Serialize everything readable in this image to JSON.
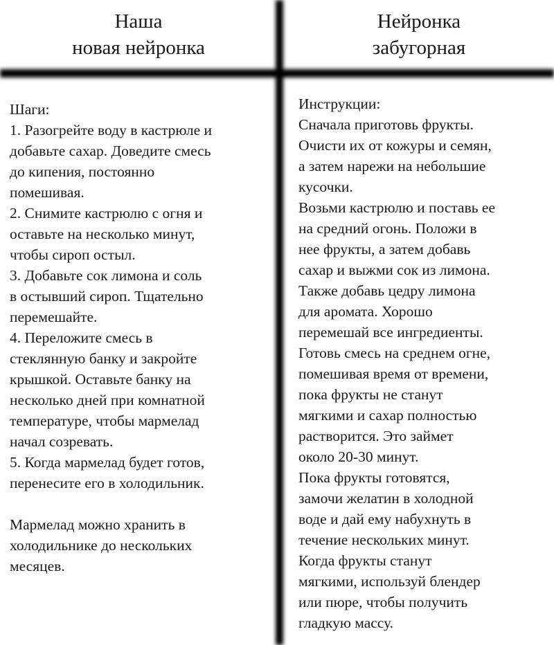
{
  "header": {
    "left_title": [
      "Наша",
      "новая нейронка"
    ],
    "right_title": [
      "Нейронка",
      "забугорная"
    ]
  },
  "left_column": {
    "lines": [
      "Шаги:",
      "1. Разогрейте воду в кастрюле и",
      "добавьте сахар. Доведите смесь",
      "до кипения, постоянно",
      "помешивая.",
      "2. Снимите кастрюлю с огня и",
      "оставьте на несколько минут,",
      "чтобы сироп остыл.",
      "3. Добавьте сок лимона и соль",
      "в остывший сироп. Тщательно",
      "перемешайте.",
      "4. Переложите смесь в",
      "стеклянную банку и закройте",
      "крышкой. Оставьте банку на",
      "несколько дней при комнатной",
      "температуре, чтобы мармелад",
      "начал созревать.",
      "5. Когда мармелад будет готов,",
      "перенесите его в холодильник.",
      "",
      "Мармелад можно хранить в",
      "холодильнике до нескольких",
      "месяцев."
    ]
  },
  "right_column": {
    "lines": [
      "Инструкции:",
      "Сначала приготовь фрукты.",
      "Очисти их от кожуры и семян,",
      "а затем нарежи на небольшие",
      "кусочки.",
      "Возьми кастрюлю и поставь ее",
      "на средний огонь. Положи в",
      "нее фрукты, а затем добавь",
      "сахар и выжми сок из лимона.",
      "Также добавь цедру лимона",
      "для аромата. Хорошо",
      "перемешай все ингредиенты.",
      "Готовь смесь на среднем огне,",
      "помешивая время от времени,",
      "пока фрукты не станут",
      "мягкими и сахар полностью",
      "растворится. Это займет",
      "около 20-30 минут.",
      "Пока фрукты готовятся,",
      "замочи желатин в холодной",
      "воде и дай ему набухнуть в",
      "течение нескольких минут.",
      "Когда фрукты станут",
      "мягкими, используй блендер",
      "или пюре, чтобы получить",
      "гладкую массу."
    ]
  }
}
